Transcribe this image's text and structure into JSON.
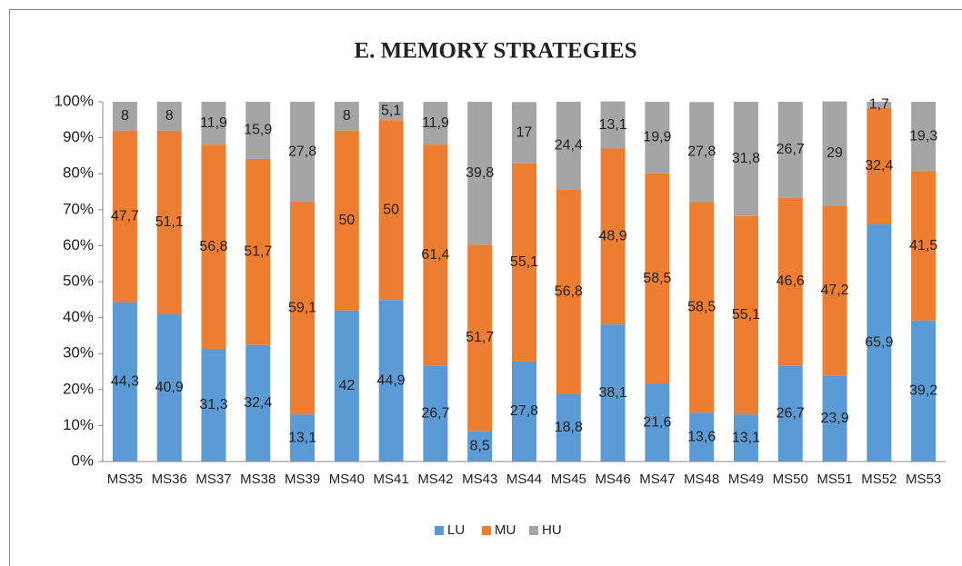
{
  "chart_data": {
    "type": "stacked_bar",
    "title": "E. MEMORY STRATEGIES",
    "categories": [
      "MS35",
      "MS36",
      "MS37",
      "MS38",
      "MS39",
      "MS40",
      "MS41",
      "MS42",
      "MS43",
      "MS44",
      "MS45",
      "MS46",
      "MS47",
      "MS48",
      "MS49",
      "MS50",
      "MS51",
      "MS52",
      "MS53"
    ],
    "series": [
      {
        "name": "LU",
        "color": "#5b9bd5",
        "values": [
          44.3,
          40.9,
          31.3,
          32.4,
          13.1,
          42,
          44.9,
          26.7,
          8.5,
          27.8,
          18.8,
          38.1,
          21.6,
          13.6,
          13.1,
          26.7,
          23.9,
          65.9,
          39.2
        ],
        "value_labels": [
          "44,3",
          "40,9",
          "31,3",
          "32,4",
          "13,1",
          "42",
          "44,9",
          "26,7",
          "8,5",
          "27,8",
          "18,8",
          "38,1",
          "21,6",
          "13,6",
          "13,1",
          "26,7",
          "23,9",
          "65,9",
          "39,2"
        ]
      },
      {
        "name": "MU",
        "color": "#ed7d31",
        "values": [
          47.7,
          51.1,
          56.8,
          51.7,
          59.1,
          50,
          50,
          61.4,
          51.7,
          55.1,
          56.8,
          48.9,
          58.5,
          58.5,
          55.1,
          46.6,
          47.2,
          32.4,
          41.5
        ],
        "value_labels": [
          "47,7",
          "51,1",
          "56,8",
          "51,7",
          "59,1",
          "50",
          "50",
          "61,4",
          "51,7",
          "55,1",
          "56,8",
          "48,9",
          "58,5",
          "58,5",
          "55,1",
          "46,6",
          "47,2",
          "32,4",
          "41,5"
        ]
      },
      {
        "name": "HU",
        "color": "#a5a5a5",
        "values": [
          8,
          8,
          11.9,
          15.9,
          27.8,
          8,
          5.1,
          11.9,
          39.8,
          17,
          24.4,
          13.1,
          19.9,
          27.8,
          31.8,
          26.7,
          29,
          1.7,
          19.3
        ],
        "value_labels": [
          "8",
          "8",
          "11,9",
          "15,9",
          "27,8",
          "8",
          "5,1",
          "11,9",
          "39,8",
          "17",
          "24,4",
          "13,1",
          "19,9",
          "27,8",
          "31,8",
          "26,7",
          "29",
          "1,7",
          "19,3"
        ]
      }
    ],
    "ylim": [
      0,
      100
    ],
    "yticks": [
      {
        "value": 0,
        "label": "0%"
      },
      {
        "value": 10,
        "label": "10%"
      },
      {
        "value": 20,
        "label": "20%"
      },
      {
        "value": 30,
        "label": "30%"
      },
      {
        "value": 40,
        "label": "40%"
      },
      {
        "value": 50,
        "label": "50%"
      },
      {
        "value": 60,
        "label": "60%"
      },
      {
        "value": 70,
        "label": "70%"
      },
      {
        "value": 80,
        "label": "80%"
      },
      {
        "value": 90,
        "label": "90%"
      },
      {
        "value": 100,
        "label": "100%"
      }
    ],
    "legend": "bottom"
  }
}
